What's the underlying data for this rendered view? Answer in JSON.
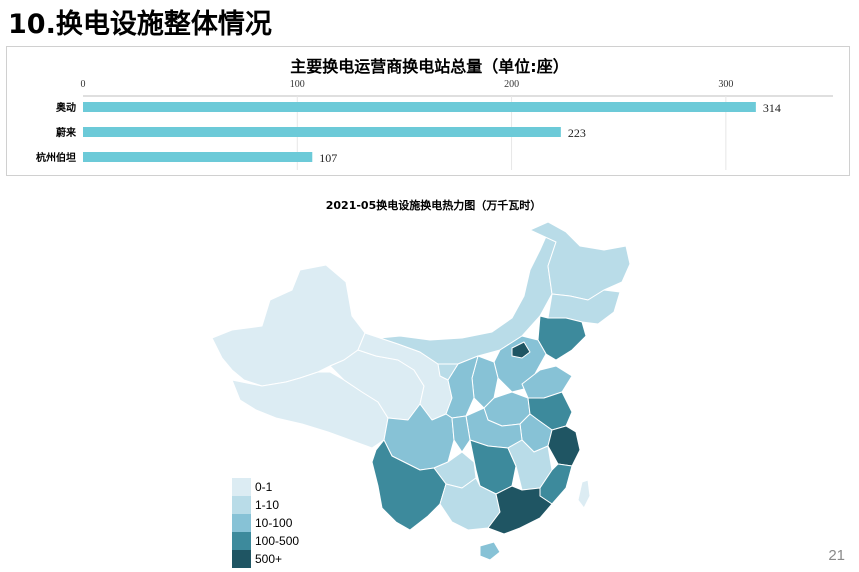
{
  "slide": {
    "title": "10.换电设施整体情况",
    "page_number": "21"
  },
  "chart_data": {
    "type": "bar",
    "orientation": "horizontal",
    "title": "主要换电运营商换电站总量（单位:座）",
    "categories": [
      "奥动",
      "蔚来",
      "杭州伯坦"
    ],
    "values": [
      314,
      223,
      107
    ],
    "value_labels": [
      "314",
      "223",
      "107"
    ],
    "xlim": [
      0,
      350
    ],
    "xticks": [
      0,
      100,
      200,
      300
    ],
    "xtick_labels": [
      "0",
      "100",
      "200",
      "300"
    ],
    "bar_color": "#6ccad8",
    "gridlines": true
  },
  "map": {
    "title": "2021-05换电设施换电热力图（万千瓦时）",
    "legend": [
      {
        "label": "0-1",
        "color": "#dcecf3"
      },
      {
        "label": "1-10",
        "color": "#b9dce8"
      },
      {
        "label": "10-100",
        "color": "#87c2d6"
      },
      {
        "label": "100-500",
        "color": "#3d8a9c"
      },
      {
        "label": "500+",
        "color": "#1f5563"
      }
    ],
    "regions": [
      {
        "name": "新疆",
        "level": "0-1"
      },
      {
        "name": "西藏",
        "level": "0-1"
      },
      {
        "name": "青海",
        "level": "0-1"
      },
      {
        "name": "甘肃",
        "level": "0-1"
      },
      {
        "name": "内蒙古",
        "level": "1-10"
      },
      {
        "name": "黑龙江",
        "level": "1-10"
      },
      {
        "name": "吉林",
        "level": "1-10"
      },
      {
        "name": "辽宁",
        "level": "100-500"
      },
      {
        "name": "北京",
        "level": "500+"
      },
      {
        "name": "山东",
        "level": "10-100"
      },
      {
        "name": "江苏",
        "level": "100-500"
      },
      {
        "name": "上海浙江",
        "level": "500+"
      },
      {
        "name": "福建",
        "level": "100-500"
      },
      {
        "name": "广东",
        "level": "500+"
      },
      {
        "name": "湖南",
        "level": "100-500"
      },
      {
        "name": "云南",
        "level": "100-500"
      },
      {
        "name": "四川",
        "level": "10-100"
      },
      {
        "name": "华中",
        "level": "10-100"
      },
      {
        "name": "广西",
        "level": "1-10"
      },
      {
        "name": "海南",
        "level": "10-100"
      },
      {
        "name": "台湾",
        "level": "0-1"
      }
    ]
  }
}
